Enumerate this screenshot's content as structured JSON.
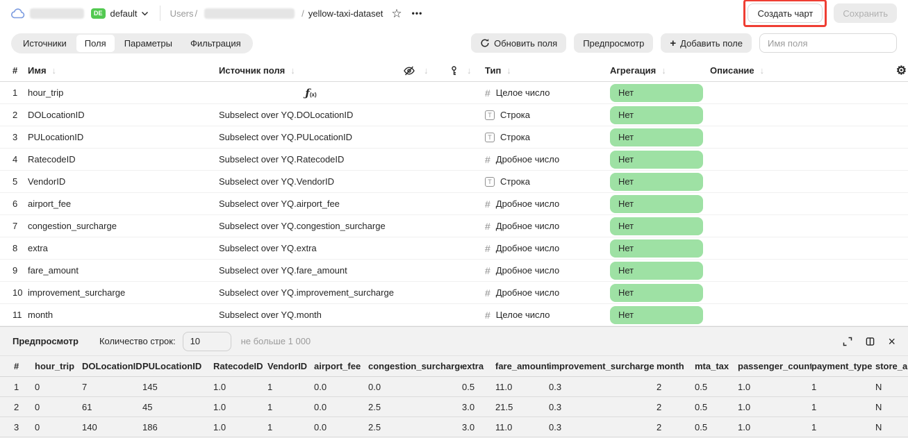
{
  "header": {
    "product_badge": "DE",
    "connection_name": "default",
    "breadcrumb_root": "Users",
    "breadcrumb_separator": "/",
    "dataset_name": "yellow-taxi-dataset",
    "create_chart_button": "Создать чарт",
    "save_button": "Сохранить"
  },
  "icons": {
    "star": "☆",
    "more": "•••",
    "gear": "⚙",
    "close": "×",
    "plus": "+",
    "sort_arrow": "↓",
    "formula_f": "ƒ",
    "formula_sub": "(x)"
  },
  "tabs": [
    {
      "id": "sources",
      "label": "Источники",
      "active": false
    },
    {
      "id": "fields",
      "label": "Поля",
      "active": true
    },
    {
      "id": "parameters",
      "label": "Параметры",
      "active": false
    },
    {
      "id": "filtering",
      "label": "Фильтрация",
      "active": false
    }
  ],
  "toolbar": {
    "refresh_fields": "Обновить поля",
    "preview": "Предпросмотр",
    "add_field": "Добавить поле",
    "field_name_placeholder": "Имя поля"
  },
  "fields_table": {
    "header": {
      "num": "#",
      "name": "Имя",
      "source": "Источник поля",
      "type": "Тип",
      "aggregation": "Агрегация",
      "description": "Описание"
    },
    "rows": [
      {
        "num": "1",
        "name": "hour_trip",
        "source": "",
        "formula": true,
        "type": "Целое число",
        "kind": "integer",
        "aggregation": "Нет",
        "description": ""
      },
      {
        "num": "2",
        "name": "DOLocationID",
        "source": "Subselect over YQ.DOLocationID",
        "formula": false,
        "type": "Строка",
        "kind": "string",
        "aggregation": "Нет",
        "description": ""
      },
      {
        "num": "3",
        "name": "PULocationID",
        "source": "Subselect over YQ.PULocationID",
        "formula": false,
        "type": "Строка",
        "kind": "string",
        "aggregation": "Нет",
        "description": ""
      },
      {
        "num": "4",
        "name": "RatecodeID",
        "source": "Subselect over YQ.RatecodeID",
        "formula": false,
        "type": "Дробное число",
        "kind": "float",
        "aggregation": "Нет",
        "description": ""
      },
      {
        "num": "5",
        "name": "VendorID",
        "source": "Subselect over YQ.VendorID",
        "formula": false,
        "type": "Строка",
        "kind": "string",
        "aggregation": "Нет",
        "description": ""
      },
      {
        "num": "6",
        "name": "airport_fee",
        "source": "Subselect over YQ.airport_fee",
        "formula": false,
        "type": "Дробное число",
        "kind": "float",
        "aggregation": "Нет",
        "description": ""
      },
      {
        "num": "7",
        "name": "congestion_surcharge",
        "source": "Subselect over YQ.congestion_surcharge",
        "formula": false,
        "type": "Дробное число",
        "kind": "float",
        "aggregation": "Нет",
        "description": ""
      },
      {
        "num": "8",
        "name": "extra",
        "source": "Subselect over YQ.extra",
        "formula": false,
        "type": "Дробное число",
        "kind": "float",
        "aggregation": "Нет",
        "description": ""
      },
      {
        "num": "9",
        "name": "fare_amount",
        "source": "Subselect over YQ.fare_amount",
        "formula": false,
        "type": "Дробное число",
        "kind": "float",
        "aggregation": "Нет",
        "description": ""
      },
      {
        "num": "10",
        "name": "improvement_surcharge",
        "source": "Subselect over YQ.improvement_surcharge",
        "formula": false,
        "type": "Дробное число",
        "kind": "float",
        "aggregation": "Нет",
        "description": ""
      },
      {
        "num": "11",
        "name": "month",
        "source": "Subselect over YQ.month",
        "formula": false,
        "type": "Целое число",
        "kind": "integer",
        "aggregation": "Нет",
        "description": ""
      }
    ]
  },
  "preview": {
    "title": "Предпросмотр",
    "row_count_label": "Количество строк:",
    "row_count_value": "10",
    "row_limit_hint": "не больше 1 000",
    "table": {
      "columns": [
        "#",
        "hour_trip",
        "DOLocationID",
        "PULocationID",
        "RatecodeID",
        "VendorID",
        "airport_fee",
        "congestion_surcharge",
        "extra",
        "fare_amount",
        "improvement_surcharge",
        "month",
        "mta_tax",
        "passenger_count",
        "payment_type",
        "store_an"
      ],
      "rows": [
        [
          "1",
          "0",
          "7",
          "145",
          "1.0",
          "1",
          "0.0",
          "0.0",
          "0.5",
          "11.0",
          "0.3",
          "2",
          "0.5",
          "1.0",
          "1",
          "N"
        ],
        [
          "2",
          "0",
          "61",
          "45",
          "1.0",
          "1",
          "0.0",
          "2.5",
          "3.0",
          "21.5",
          "0.3",
          "2",
          "0.5",
          "1.0",
          "1",
          "N"
        ],
        [
          "3",
          "0",
          "140",
          "186",
          "1.0",
          "1",
          "0.0",
          "2.5",
          "3.0",
          "11.0",
          "0.3",
          "2",
          "0.5",
          "1.0",
          "1",
          "N"
        ]
      ]
    }
  },
  "colors": {
    "aggregation_pill": "#9ee1a4",
    "badge_green": "#53c951",
    "annotation_red": "#ef3e33"
  }
}
